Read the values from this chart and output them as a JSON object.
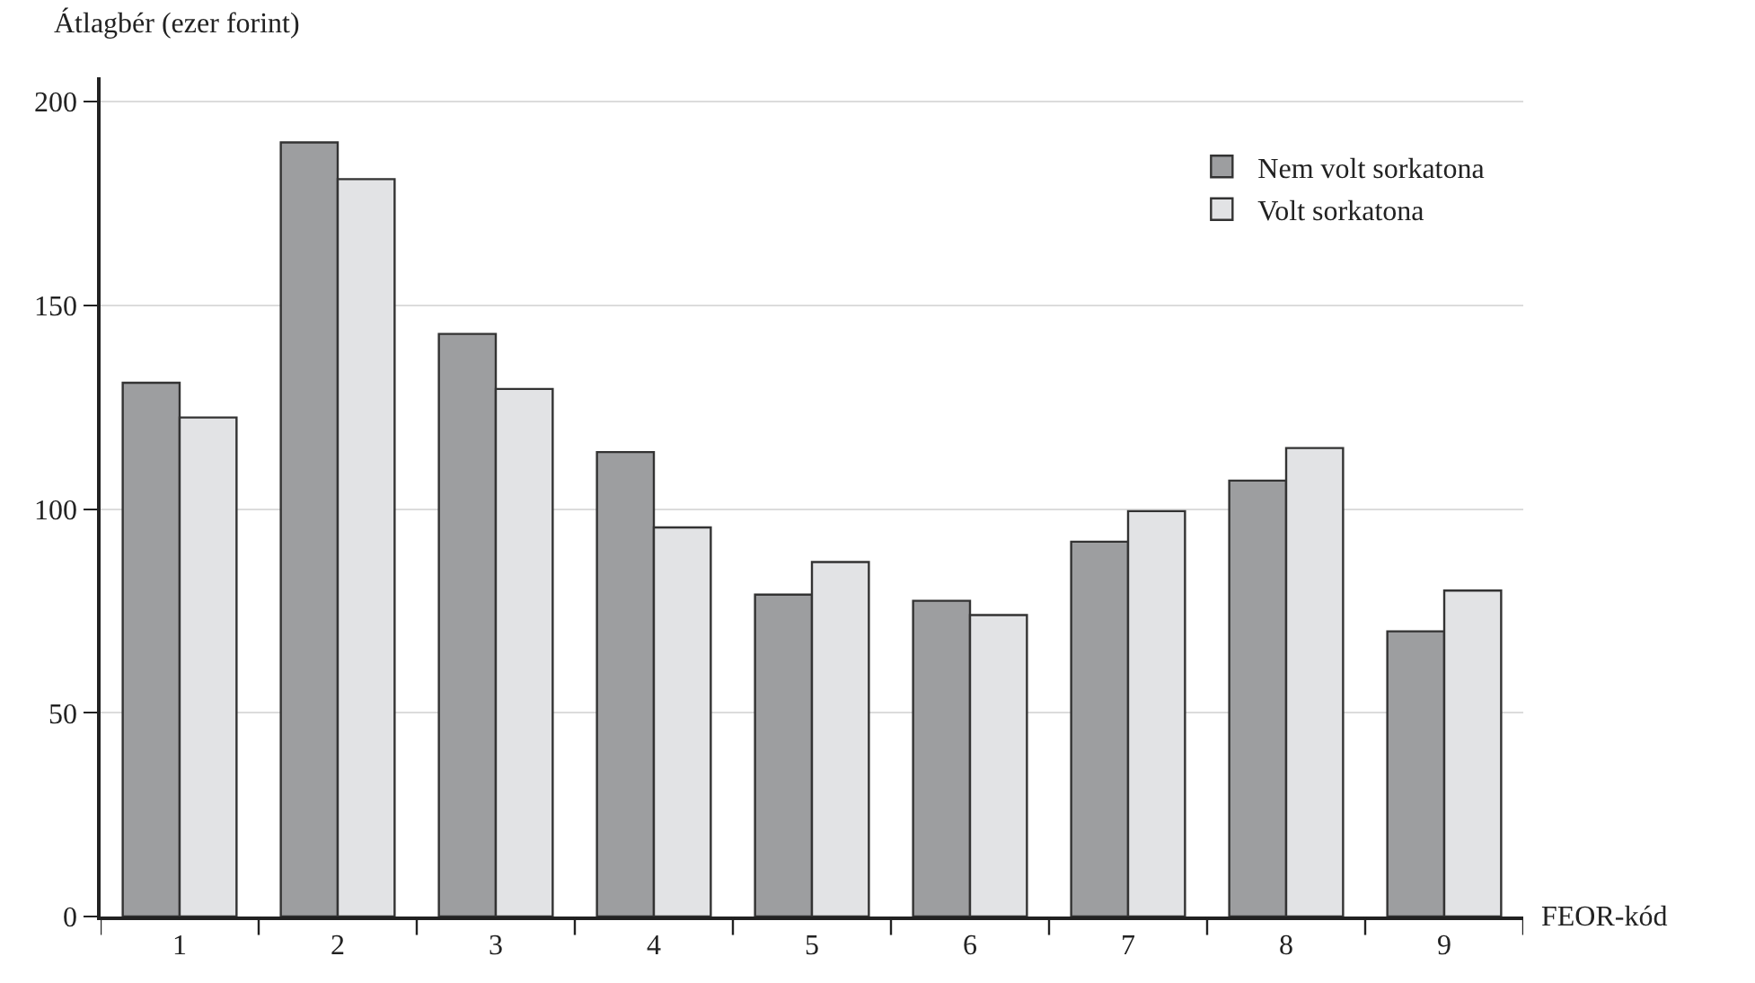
{
  "chart_data": {
    "type": "bar",
    "xlabel": "FEOR-kód",
    "ylabel": "Átlagbér (ezer forint)",
    "categories": [
      "1",
      "2",
      "3",
      "4",
      "5",
      "6",
      "7",
      "8",
      "9"
    ],
    "series": [
      {
        "name": "Nem volt sorkatona",
        "color": "#9d9ea0",
        "values": [
          131,
          190,
          143,
          114,
          79,
          77.5,
          92,
          107,
          70
        ]
      },
      {
        "name": "Volt sorkatona",
        "color": "#e2e3e5",
        "values": [
          122.5,
          181,
          129.5,
          95.5,
          87,
          74,
          99.5,
          115,
          80
        ]
      }
    ],
    "ylim": [
      0,
      206
    ],
    "yticks": [
      0,
      50,
      100,
      150,
      200
    ],
    "grid": "y",
    "legend": "top right"
  }
}
